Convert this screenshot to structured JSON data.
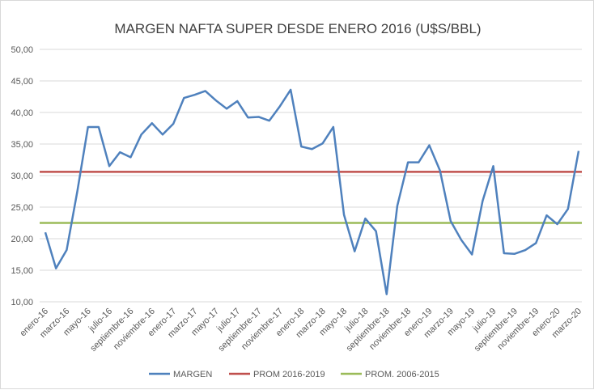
{
  "chart_data": {
    "type": "line",
    "title": "MARGEN NAFTA SUPER DESDE ENERO 2016 (U$S/BBL)",
    "xlabel": "",
    "ylabel": "",
    "ylim": [
      10,
      50
    ],
    "yticks": [
      "10,00",
      "15,00",
      "20,00",
      "25,00",
      "30,00",
      "35,00",
      "40,00",
      "45,00",
      "50,00"
    ],
    "grid": true,
    "legend_position": "bottom",
    "x_tick_labels": [
      "enero-16",
      "marzo-16",
      "mayo-16",
      "julio-16",
      "septiembre-16",
      "noviembre-16",
      "enero-17",
      "marzo-17",
      "mayo-17",
      "julio-17",
      "septiembre-17",
      "noviembre-17",
      "enero-18",
      "marzo-18",
      "mayo-18",
      "julio-18",
      "septiembre-18",
      "noviembre-18",
      "enero-19",
      "marzo-19",
      "mayo-19",
      "julio-19",
      "septiembre-19",
      "noviembre-19",
      "enero-20",
      "marzo-20"
    ],
    "series": [
      {
        "name": "MARGEN",
        "color": "#4f81bd",
        "values": [
          21.0,
          15.3,
          18.2,
          27.5,
          37.7,
          37.7,
          31.5,
          33.7,
          32.9,
          36.5,
          38.3,
          36.5,
          38.2,
          42.3,
          42.8,
          43.4,
          41.9,
          40.6,
          41.8,
          39.2,
          39.3,
          38.7,
          41.0,
          43.6,
          34.6,
          34.2,
          35.1,
          37.7,
          23.8,
          18.0,
          23.2,
          21.2,
          11.2,
          25.2,
          32.1,
          32.1,
          34.8,
          30.8,
          22.8,
          19.8,
          17.5,
          26.0,
          31.5,
          17.7,
          17.6,
          18.2,
          19.3,
          23.7,
          22.3,
          24.7,
          33.9
        ]
      },
      {
        "name": "PROM 2016-2019",
        "color": "#c0504d",
        "constant": 30.6
      },
      {
        "name": "PROM. 2006-2015",
        "color": "#9bbb59",
        "constant": 22.5
      }
    ]
  }
}
